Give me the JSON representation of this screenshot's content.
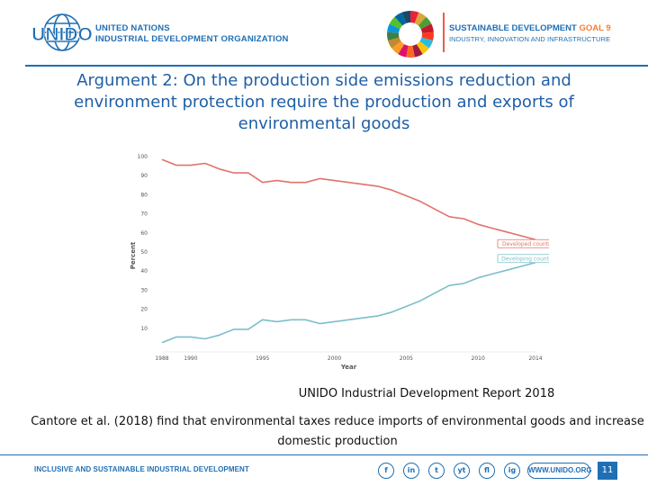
{
  "header": {
    "org_logo_text": "UNIDO",
    "org_name_line1": "UNITED NATIONS",
    "org_name_line2": "INDUSTRIAL DEVELOPMENT ORGANIZATION",
    "sdg_title": "SUSTAINABLE DEVELOPMENT",
    "sdg_goal": "GOAL 9",
    "sdg_subtitle": "INDUSTRY, INNOVATION AND INFRASTRUCTURE"
  },
  "slide": {
    "title": "Argument 2: On the production side emissions reduction and environment protection require the production and exports of environmental goods",
    "caption_source": "UNIDO Industrial Development Report 2018",
    "caption_finding": "Cantore et al. (2018) find that environmental taxes reduce imports of environmental goods and increase domestic production"
  },
  "chart_data": {
    "type": "line",
    "title": "",
    "xlabel": "Year",
    "ylabel": "Percent",
    "xlim": [
      1988,
      2014
    ],
    "ylim": [
      0,
      100
    ],
    "x_ticks": [
      "1988",
      "1990",
      "1995",
      "2000",
      "2005",
      "2010",
      "2014"
    ],
    "y_ticks": [
      "10",
      "20",
      "30",
      "40",
      "50",
      "60",
      "70",
      "80",
      "90",
      "100"
    ],
    "x": [
      1988,
      1989,
      1990,
      1991,
      1992,
      1993,
      1994,
      1995,
      1996,
      1997,
      1998,
      1999,
      2000,
      2001,
      2002,
      2003,
      2004,
      2005,
      2006,
      2007,
      2008,
      2009,
      2010,
      2011,
      2012,
      2013,
      2014
    ],
    "series": [
      {
        "name": "Developed countries",
        "color": "#e0736b",
        "values": [
          98,
          95,
          95,
          96,
          93,
          91,
          91,
          86,
          87,
          86,
          86,
          88,
          87,
          86,
          85,
          84,
          82,
          79,
          76,
          72,
          68,
          67,
          64,
          62,
          60,
          58,
          56
        ]
      },
      {
        "name": "Developing countries",
        "color": "#7bbfc9",
        "values": [
          2,
          5,
          5,
          4,
          6,
          9,
          9,
          14,
          13,
          14,
          14,
          12,
          13,
          14,
          15,
          16,
          18,
          21,
          24,
          28,
          32,
          33,
          36,
          38,
          40,
          42,
          44
        ]
      }
    ],
    "legend": [
      "Developed countries",
      "Developing countries"
    ]
  },
  "footer": {
    "tagline": "INCLUSIVE AND SUSTAINABLE INDUSTRIAL DEVELOPMENT",
    "social_icons": [
      "f",
      "in",
      "t",
      "yt",
      "fl",
      "ig"
    ],
    "website": "WWW.UNIDO.ORG",
    "page_number": "11"
  },
  "colors": {
    "brand_blue": "#1f6fb4",
    "sdg_orange": "#f37c35"
  }
}
